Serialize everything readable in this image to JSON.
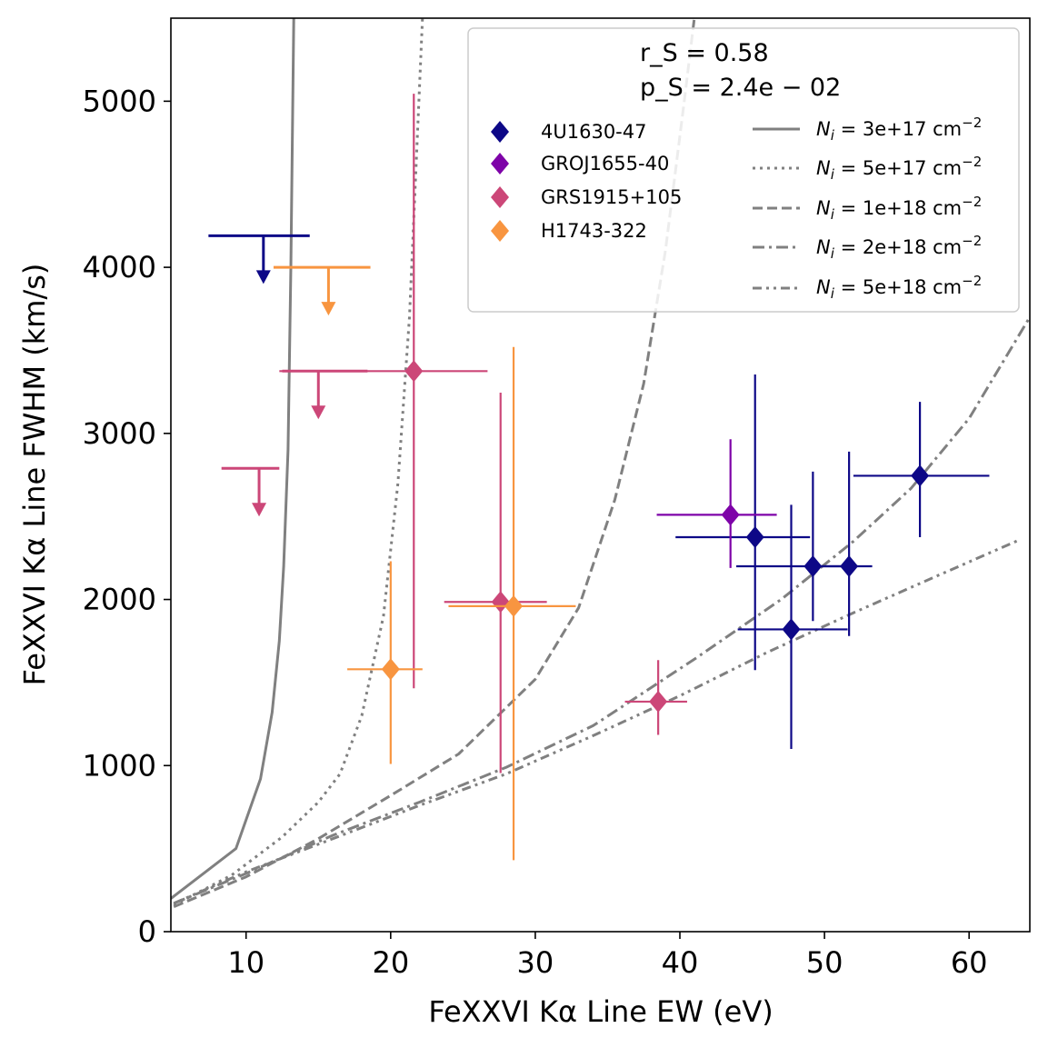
{
  "chart_data": {
    "type": "scatter",
    "xlabel": "FeXXVI Kα Line EW (eV)",
    "ylabel": "FeXXVI Kα Line FWHM (km/s)",
    "xlim": [
      4.8,
      64.2
    ],
    "ylim": [
      0,
      5500
    ],
    "x_ticks": [
      10,
      20,
      30,
      40,
      50,
      60
    ],
    "y_ticks": [
      0,
      1000,
      2000,
      3000,
      4000,
      5000
    ],
    "x_tick_labels": [
      "10",
      "20",
      "30",
      "40",
      "50",
      "60"
    ],
    "y_tick_labels": [
      "0",
      "1000",
      "2000",
      "3000",
      "4000",
      "5000"
    ],
    "legend_position": "top-right",
    "stats": {
      "r_s": "r_S = 0.58",
      "p_s": "p_S = 2.4e − 02"
    },
    "series": [
      {
        "name": "4U1630-47",
        "color": "#0d0887",
        "points": [
          {
            "x": 45.2,
            "y": 2375,
            "xerr": [
              5.5,
              3.8
            ],
            "yerr": [
              800,
              980
            ]
          },
          {
            "x": 47.7,
            "y": 1820,
            "xerr": [
              3.7,
              3.9
            ],
            "yerr": [
              720,
              750
            ]
          },
          {
            "x": 49.2,
            "y": 2200,
            "xerr": [
              5.3,
              2.4
            ],
            "yerr": [
              330,
              570
            ]
          },
          {
            "x": 51.7,
            "y": 2200,
            "xerr": [
              2.4,
              1.6
            ],
            "yerr": [
              420,
              690
            ]
          },
          {
            "x": 56.6,
            "y": 2745,
            "xerr": [
              4.6,
              4.8
            ],
            "yerr": [
              370,
              445
            ]
          }
        ],
        "upper_limits": [
          {
            "x": 11.2,
            "y": 4190,
            "xerr": [
              3.8,
              3.2
            ]
          }
        ]
      },
      {
        "name": "GROJ1655-40",
        "color": "#7e03a8",
        "points": [
          {
            "x": 43.5,
            "y": 2510,
            "xerr": [
              5.1,
              3.2
            ],
            "yerr": [
              320,
              455
            ]
          }
        ],
        "upper_limits": []
      },
      {
        "name": "GRS1915+105",
        "color": "#cc4778",
        "points": [
          {
            "x": 21.6,
            "y": 3375,
            "xerr": [
              9.3,
              5.1
            ],
            "yerr": [
              1910,
              1670
            ]
          },
          {
            "x": 27.6,
            "y": 1985,
            "xerr": [
              3.9,
              3.2
            ],
            "yerr": [
              1030,
              1260
            ]
          },
          {
            "x": 38.5,
            "y": 1385,
            "xerr": [
              2.3,
              2.0
            ],
            "yerr": [
              200,
              250
            ]
          }
        ],
        "upper_limits": [
          {
            "x": 15.0,
            "y": 3375,
            "xerr": [
              2.5,
              3.4
            ]
          },
          {
            "x": 10.9,
            "y": 2790,
            "xerr": [
              2.6,
              1.4
            ]
          }
        ]
      },
      {
        "name": "H1743-322",
        "color": "#f89540",
        "points": [
          {
            "x": 20.0,
            "y": 1580,
            "xerr": [
              3.0,
              2.2
            ],
            "yerr": [
              570,
              650
            ]
          },
          {
            "x": 28.5,
            "y": 1960,
            "xerr": [
              4.5,
              4.3
            ],
            "yerr": [
              1530,
              1560
            ]
          }
        ],
        "upper_limits": [
          {
            "x": 15.7,
            "y": 4000,
            "xerr": [
              3.8,
              2.9
            ]
          }
        ]
      }
    ],
    "model_curves": [
      {
        "label": "N_i = 3e+17 cm⁻²",
        "label_main": "N",
        "label_sub": "i",
        "label_mid": " = 3e+17 cm",
        "label_sup": "−2",
        "style": "solid",
        "color": "#808080",
        "x": [
          4.8,
          9.3,
          11.0,
          11.8,
          12.3,
          12.6,
          12.9,
          13.1,
          13.3
        ],
        "y": [
          200,
          500,
          920,
          1320,
          1750,
          2200,
          2900,
          4000,
          5500
        ]
      },
      {
        "label": "N_i = 5e+17 cm⁻²",
        "label_main": "N",
        "label_sub": "i",
        "label_mid": " = 5e+17 cm",
        "label_sup": "−2",
        "style": "dotted",
        "color": "#808080",
        "x": [
          5.0,
          9.0,
          12.5,
          15.0,
          16.5,
          18.0,
          19.5,
          20.5,
          21.3,
          21.8,
          22.2
        ],
        "y": [
          160,
          340,
          570,
          780,
          950,
          1300,
          1900,
          2700,
          3700,
          4700,
          5500
        ]
      },
      {
        "label": "N_i = 1e+18 cm⁻²",
        "label_main": "N",
        "label_sub": "i",
        "label_mid": " = 1e+18 cm",
        "label_sup": "−2",
        "style": "dashed",
        "color": "#808080",
        "x": [
          5.0,
          10.0,
          15.0,
          20.0,
          24.7,
          30.0,
          33.0,
          35.5,
          37.5,
          39.0,
          40.3,
          41.0
        ],
        "y": [
          150,
          330,
          560,
          820,
          1070,
          1520,
          1950,
          2600,
          3300,
          4100,
          5000,
          5500
        ]
      },
      {
        "label": "N_i = 2e+18 cm⁻²",
        "label_main": "N",
        "label_sub": "i",
        "label_mid": " = 2e+18 cm",
        "label_sup": "−2",
        "style": "dashdot",
        "color": "#808080",
        "x": [
          5.0,
          10.0,
          16.0,
          22.0,
          28.0,
          34.0,
          41.0,
          47.0,
          52.0,
          56.0,
          60.0,
          64.2
        ],
        "y": [
          170,
          350,
          580,
          780,
          990,
          1240,
          1640,
          2000,
          2350,
          2670,
          3090,
          3700
        ]
      },
      {
        "label": "N_i = 5e+18 cm⁻²",
        "label_main": "N",
        "label_sub": "i",
        "label_mid": " = 5e+18 cm",
        "label_sup": "−2",
        "style": "dashdotdot",
        "color": "#808080",
        "x": [
          5.0,
          10.0,
          16.0,
          22.0,
          28.0,
          34.0,
          40.0,
          46.0,
          52.0,
          58.0,
          63.5
        ],
        "y": [
          170,
          360,
          560,
          760,
          950,
          1180,
          1420,
          1680,
          1920,
          2150,
          2360
        ]
      }
    ]
  }
}
